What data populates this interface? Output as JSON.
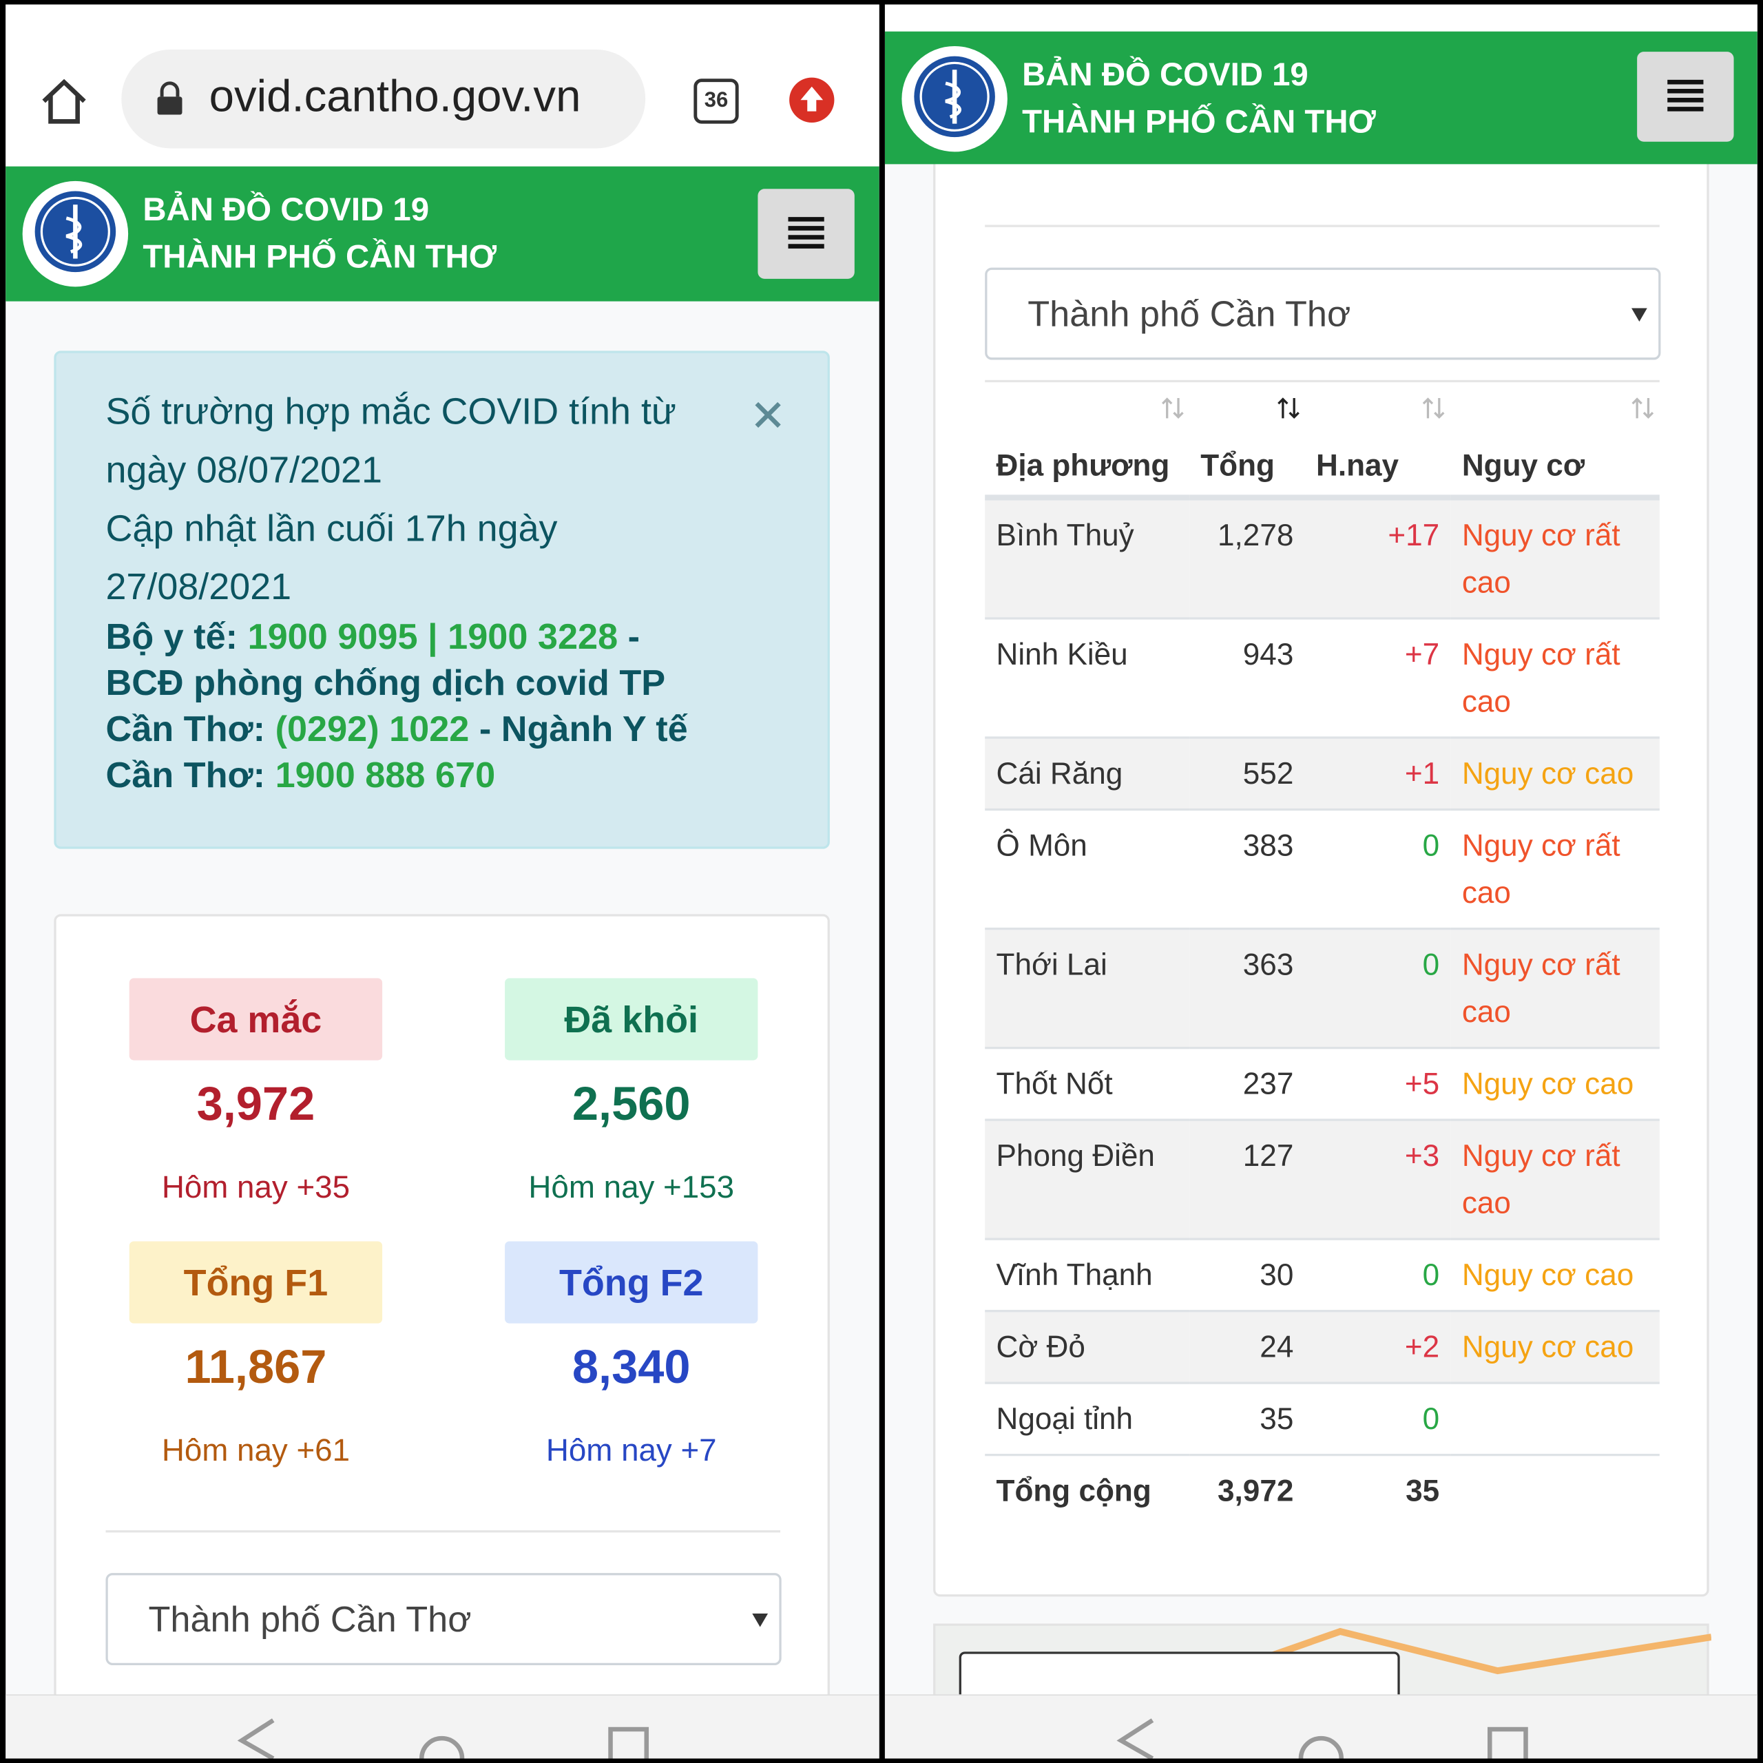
{
  "left": {
    "browser": {
      "url": "ovid.cantho.gov.vn",
      "tabs": "36"
    },
    "header": {
      "line1": "BẢN ĐỒ COVID 19",
      "line2": "THÀNH PHỐ CẦN THƠ"
    },
    "alert": {
      "line1": "Số trường hợp mắc COVID tính từ ngày 08/07/2021",
      "line2": "Cập nhật lần cuối 17h ngày 27/08/2021",
      "contacts": [
        {
          "text": "Bộ y tế: ",
          "color": "#0c5460"
        },
        {
          "text": "1900 9095 | 1900 3228",
          "color": "#28a745"
        },
        {
          "text": " - BCĐ phòng chống dịch covid TP Cần Thơ: ",
          "color": "#0c5460"
        },
        {
          "text": "(0292) 1022",
          "color": "#28a745"
        },
        {
          "text": " - Ngành Y tế Cần Thơ: ",
          "color": "#0c5460"
        },
        {
          "text": "1900 888 670",
          "color": "#28a745"
        }
      ]
    },
    "stats": [
      {
        "label": "Ca mắc",
        "value": "3,972",
        "today": "Hôm nay +35",
        "color": "#b21f2d",
        "bg": "#fadbdd"
      },
      {
        "label": "Đã khỏi",
        "value": "2,560",
        "today": "Hôm nay +153",
        "color": "#0f7050",
        "bg": "#d4f7e3"
      },
      {
        "label": "Tổng F1",
        "value": "11,867",
        "today": "Hôm nay +61",
        "color": "#b35a0f",
        "bg": "#fdf2c9"
      },
      {
        "label": "Tổng F2",
        "value": "8,340",
        "today": "Hôm nay +7",
        "color": "#2747c4",
        "bg": "#dae7fc"
      }
    ],
    "select": "Thành phố Cần Thơ"
  },
  "right": {
    "header": {
      "line1": "BẢN ĐỒ COVID 19",
      "line2": "THÀNH PHỐ CẦN THƠ"
    },
    "select": "Thành phố Cần Thơ",
    "table": {
      "headers": [
        "Địa phương",
        "Tổng",
        "H.nay",
        "Nguy cơ"
      ],
      "rows": [
        {
          "name": "Bình Thuỷ",
          "total": "1,278",
          "today": "+17",
          "today_color": "#dc3545",
          "risk": "Nguy cơ rất cao",
          "risk_color": "#f0532b"
        },
        {
          "name": "Ninh Kiều",
          "total": "943",
          "today": "+7",
          "today_color": "#dc3545",
          "risk": "Nguy cơ rất cao",
          "risk_color": "#f0532b"
        },
        {
          "name": "Cái Răng",
          "total": "552",
          "today": "+1",
          "today_color": "#dc3545",
          "risk": "Nguy cơ cao",
          "risk_color": "#f5a312"
        },
        {
          "name": "Ô Môn",
          "total": "383",
          "today": "0",
          "today_color": "#28a745",
          "risk": "Nguy cơ rất cao",
          "risk_color": "#f0532b"
        },
        {
          "name": "Thới Lai",
          "total": "363",
          "today": "0",
          "today_color": "#28a745",
          "risk": "Nguy cơ rất cao",
          "risk_color": "#f0532b"
        },
        {
          "name": "Thốt Nốt",
          "total": "237",
          "today": "+5",
          "today_color": "#dc3545",
          "risk": "Nguy cơ cao",
          "risk_color": "#f5a312"
        },
        {
          "name": "Phong Điền",
          "total": "127",
          "today": "+3",
          "today_color": "#dc3545",
          "risk": "Nguy cơ rất cao",
          "risk_color": "#f0532b"
        },
        {
          "name": "Vĩnh Thạnh",
          "total": "30",
          "today": "0",
          "today_color": "#28a745",
          "risk": "Nguy cơ cao",
          "risk_color": "#f5a312"
        },
        {
          "name": "Cờ Đỏ",
          "total": "24",
          "today": "+2",
          "today_color": "#dc3545",
          "risk": "Nguy cơ cao",
          "risk_color": "#f5a312"
        },
        {
          "name": "Ngoại tỉnh",
          "total": "35",
          "today": "0",
          "today_color": "#28a745"
        }
      ],
      "footer": {
        "name": "Tổng cộng",
        "total": "3,972",
        "today": "35"
      }
    }
  }
}
